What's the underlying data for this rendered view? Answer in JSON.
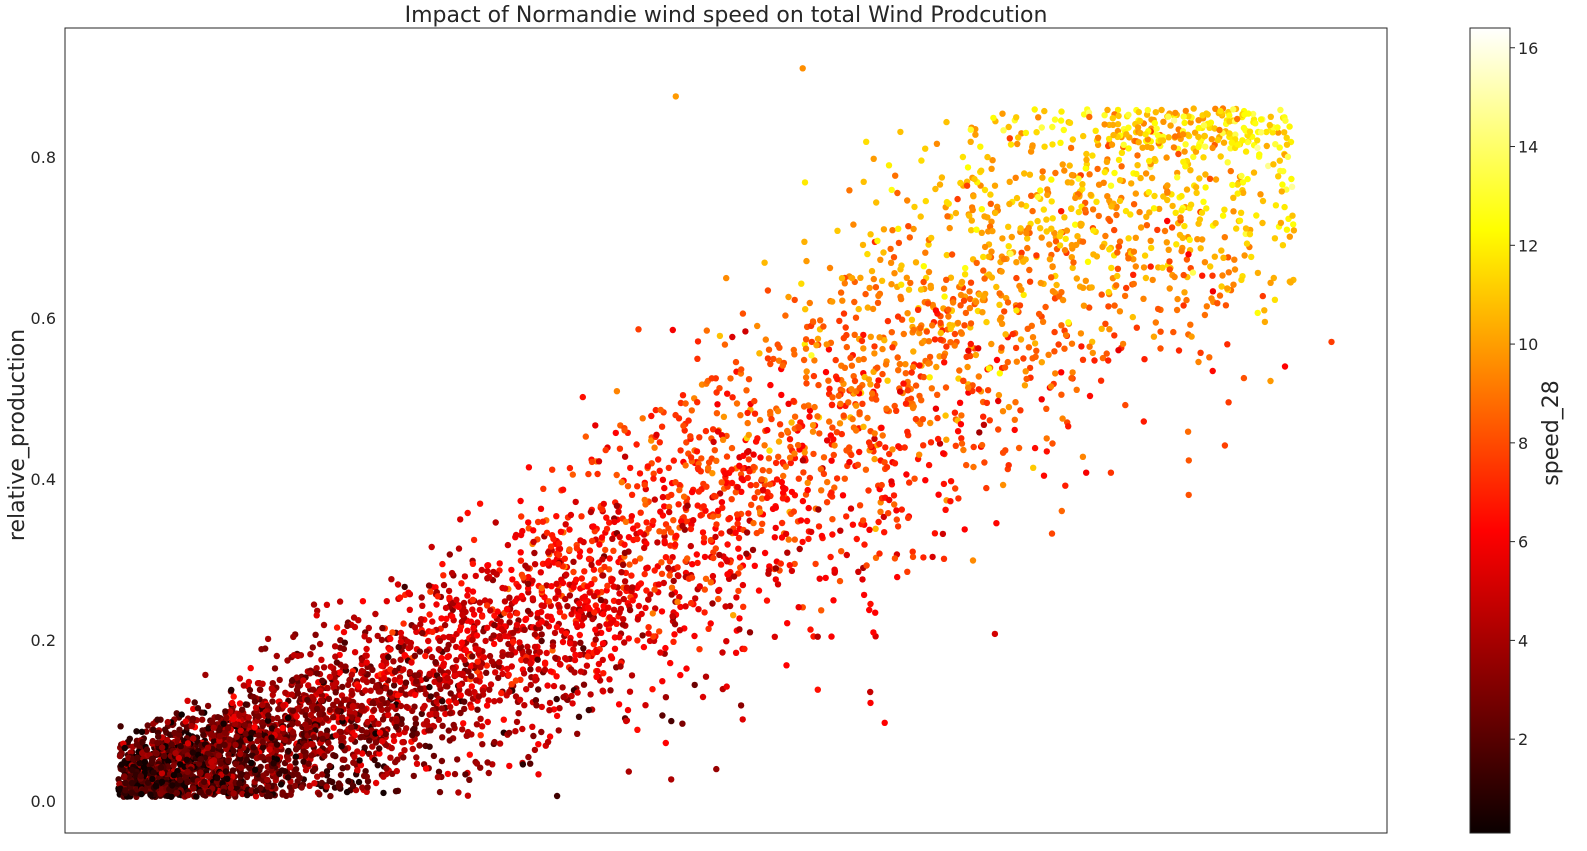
{
  "chart_data": {
    "type": "scatter",
    "title": "Impact of Normandie wind speed on total Wind Prodcution",
    "xlabel": "",
    "ylabel": "relative_production",
    "x_ticks_visible": false,
    "ylim": [
      -0.04,
      0.96
    ],
    "y_ticks": [
      "0.0",
      "0.2",
      "0.4",
      "0.6",
      "0.8"
    ],
    "colorbar": {
      "label": "speed_28",
      "colormap": "hot",
      "range": [
        0.1,
        16.4
      ],
      "ticks": [
        "2",
        "4",
        "6",
        "8",
        "10",
        "12",
        "14",
        "16"
      ]
    },
    "grid": false,
    "notable_points": [
      {
        "x": 0.558,
        "y": 0.91,
        "color_value": 9.5
      },
      {
        "x": 0.462,
        "y": 0.875,
        "color_value": 9.8
      },
      {
        "x": 0.958,
        "y": 0.57,
        "color_value": 7.5
      },
      {
        "x": 0.85,
        "y": 0.38,
        "color_value": 8.0
      },
      {
        "x": 0.754,
        "y": 0.36,
        "color_value": 8.5
      },
      {
        "x": 0.925,
        "y": 0.8,
        "color_value": 13.5
      }
    ],
    "point_cloud": {
      "approx_count": 25000,
      "description_of_trend": [
        {
          "x": 0.05,
          "y_center": 0.05,
          "color_value": 2.0
        },
        {
          "x": 0.2,
          "y_center": 0.08,
          "color_value": 3.5
        },
        {
          "x": 0.35,
          "y_center": 0.2,
          "color_value": 5.5
        },
        {
          "x": 0.5,
          "y_center": 0.42,
          "color_value": 7.5
        },
        {
          "x": 0.65,
          "y_center": 0.62,
          "color_value": 10.0
        },
        {
          "x": 0.8,
          "y_center": 0.74,
          "color_value": 12.5
        },
        {
          "x": 0.93,
          "y_center": 0.76,
          "color_value": 14.5
        }
      ]
    }
  }
}
